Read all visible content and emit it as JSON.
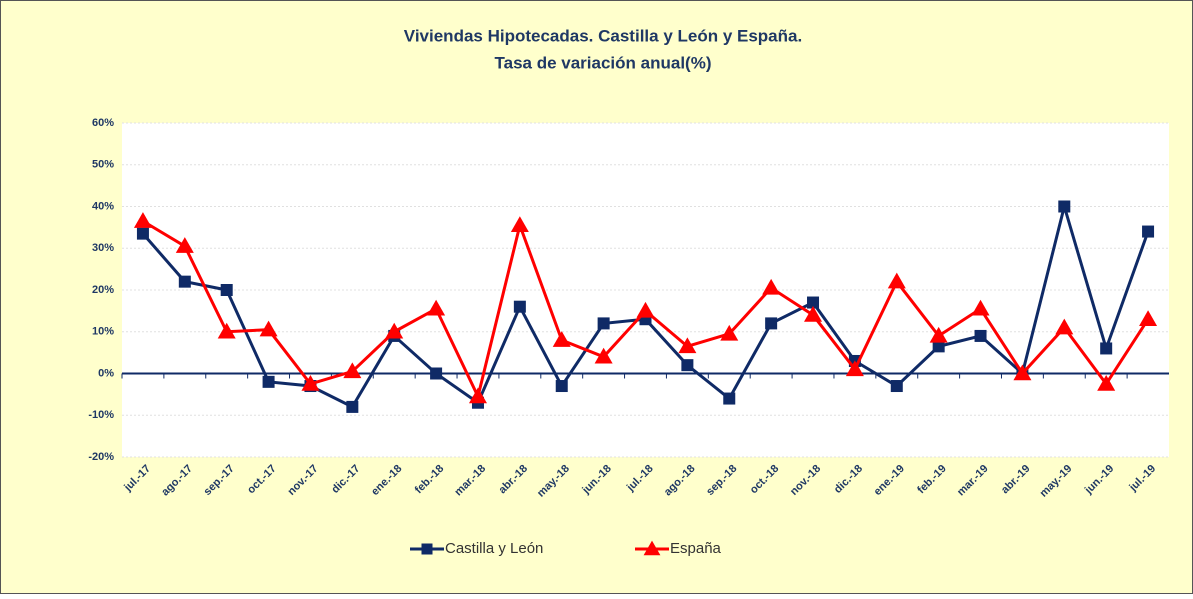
{
  "chart_data": {
    "type": "line",
    "title": "Viviendas Hipotecadas. Castilla y León y España.",
    "subtitle": "Tasa de variación anual(%)",
    "categories": [
      "jul.-17",
      "ago.-17",
      "sep.-17",
      "oct.-17",
      "nov.-17",
      "dic.-17",
      "ene.-18",
      "feb.-18",
      "mar.-18",
      "abr.-18",
      "may.-18",
      "jun.-18",
      "jul.-18",
      "ago.-18",
      "sep.-18",
      "oct.-18",
      "nov.-18",
      "dic.-18",
      "ene.-19",
      "feb.-19",
      "mar.-19",
      "abr.-19",
      "may.-19",
      "jun.-19",
      "jul.-19"
    ],
    "series": [
      {
        "name": "Castilla y León",
        "color": "#0f2a66",
        "marker": "square",
        "values": [
          33.5,
          22,
          20,
          -2,
          -3,
          -8,
          9,
          0,
          -7,
          16,
          -3,
          12,
          13,
          2,
          -6,
          12,
          17,
          3,
          -3,
          6.5,
          9,
          0,
          40,
          6,
          34
        ]
      },
      {
        "name": "España",
        "color": "#ff0000",
        "marker": "triangle",
        "values": [
          36.5,
          30.5,
          10,
          10.5,
          -2.5,
          0.5,
          10,
          15.5,
          -5.5,
          35.5,
          8,
          4,
          15,
          6.5,
          9.5,
          20.5,
          14,
          1,
          22,
          9,
          15.5,
          0,
          11,
          -2.5,
          13
        ]
      }
    ],
    "ylim": [
      -20,
      60
    ],
    "yticks": [
      {
        "value": -20,
        "label": "-20%"
      },
      {
        "value": -10,
        "label": "-10%"
      },
      {
        "value": 0,
        "label": "0%"
      },
      {
        "value": 10,
        "label": "10%"
      },
      {
        "value": 20,
        "label": "20%"
      },
      {
        "value": 30,
        "label": "30%"
      },
      {
        "value": 40,
        "label": "40%"
      },
      {
        "value": 50,
        "label": "50%"
      },
      {
        "value": 60,
        "label": "60%"
      }
    ],
    "grid": true,
    "legend": "bottom"
  }
}
